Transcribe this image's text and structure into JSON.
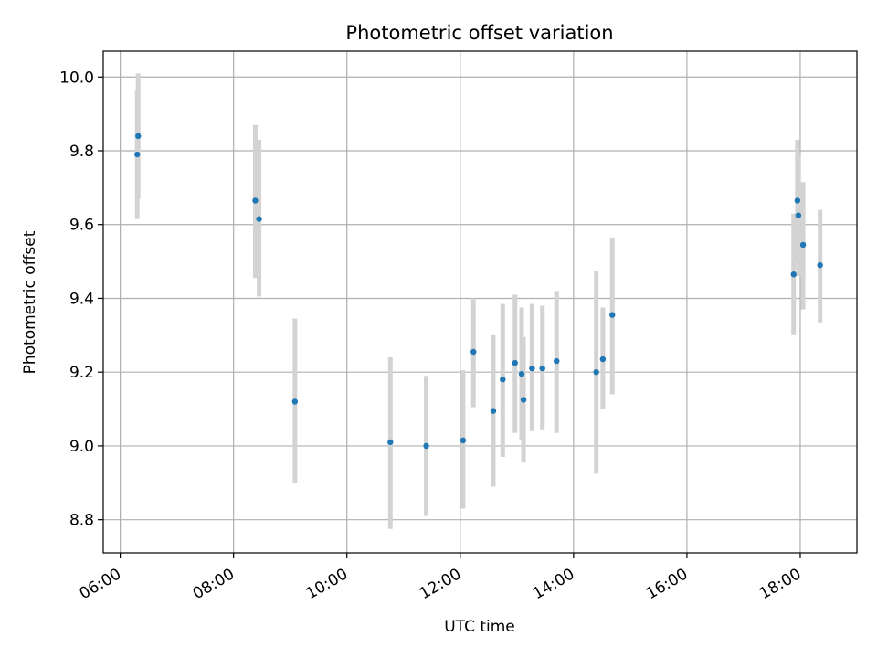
{
  "chart_data": {
    "type": "scatter",
    "title": "Photometric offset variation",
    "xlabel": "UTC time",
    "ylabel": "Photometric offset",
    "x_ticks": [
      "06:00",
      "08:00",
      "10:00",
      "12:00",
      "14:00",
      "16:00",
      "18:00"
    ],
    "y_ticks": [
      "8.8",
      "9.0",
      "9.2",
      "9.4",
      "9.6",
      "9.8",
      "10.0"
    ],
    "xlim": [
      "05:42",
      "19:00"
    ],
    "ylim": [
      8.71,
      10.07
    ],
    "grid": true,
    "colors": {
      "point": "#1f77b4",
      "error_bar": "#d3d3d3",
      "grid": "#b0b0b0"
    },
    "series": [
      {
        "points": [
          {
            "time": "06:18",
            "y": 9.79,
            "err_low": 9.615,
            "err_high": 9.965
          },
          {
            "time": "06:19",
            "y": 9.84,
            "err_low": 9.67,
            "err_high": 10.01
          },
          {
            "time": "08:23",
            "y": 9.665,
            "err_low": 9.455,
            "err_high": 9.87
          },
          {
            "time": "08:27",
            "y": 9.615,
            "err_low": 9.405,
            "err_high": 9.83
          },
          {
            "time": "09:05",
            "y": 9.12,
            "err_low": 8.9,
            "err_high": 9.345
          },
          {
            "time": "10:46",
            "y": 9.01,
            "err_low": 8.775,
            "err_high": 9.24
          },
          {
            "time": "11:24",
            "y": 9.0,
            "err_low": 8.81,
            "err_high": 9.19
          },
          {
            "time": "12:03",
            "y": 9.015,
            "err_low": 8.83,
            "err_high": 9.205
          },
          {
            "time": "12:14",
            "y": 9.255,
            "err_low": 9.105,
            "err_high": 9.4
          },
          {
            "time": "12:35",
            "y": 9.095,
            "err_low": 8.89,
            "err_high": 9.3
          },
          {
            "time": "12:45",
            "y": 9.18,
            "err_low": 8.97,
            "err_high": 9.385
          },
          {
            "time": "12:58",
            "y": 9.225,
            "err_low": 9.035,
            "err_high": 9.41
          },
          {
            "time": "13:05",
            "y": 9.195,
            "err_low": 9.015,
            "err_high": 9.375
          },
          {
            "time": "13:07",
            "y": 9.125,
            "err_low": 8.955,
            "err_high": 9.295
          },
          {
            "time": "13:16",
            "y": 9.21,
            "err_low": 9.04,
            "err_high": 9.385
          },
          {
            "time": "13:27",
            "y": 9.21,
            "err_low": 9.045,
            "err_high": 9.38
          },
          {
            "time": "13:42",
            "y": 9.23,
            "err_low": 9.035,
            "err_high": 9.42
          },
          {
            "time": "14:24",
            "y": 9.2,
            "err_low": 8.925,
            "err_high": 9.475
          },
          {
            "time": "14:31",
            "y": 9.235,
            "err_low": 9.1,
            "err_high": 9.375
          },
          {
            "time": "14:41",
            "y": 9.355,
            "err_low": 9.14,
            "err_high": 9.565
          },
          {
            "time": "17:53",
            "y": 9.465,
            "err_low": 9.3,
            "err_high": 9.63
          },
          {
            "time": "17:57",
            "y": 9.665,
            "err_low": 9.5,
            "err_high": 9.83
          },
          {
            "time": "17:58",
            "y": 9.625,
            "err_low": 9.46,
            "err_high": 9.79
          },
          {
            "time": "18:03",
            "y": 9.545,
            "err_low": 9.37,
            "err_high": 9.715
          },
          {
            "time": "18:21",
            "y": 9.49,
            "err_low": 9.335,
            "err_high": 9.64
          }
        ]
      }
    ]
  }
}
